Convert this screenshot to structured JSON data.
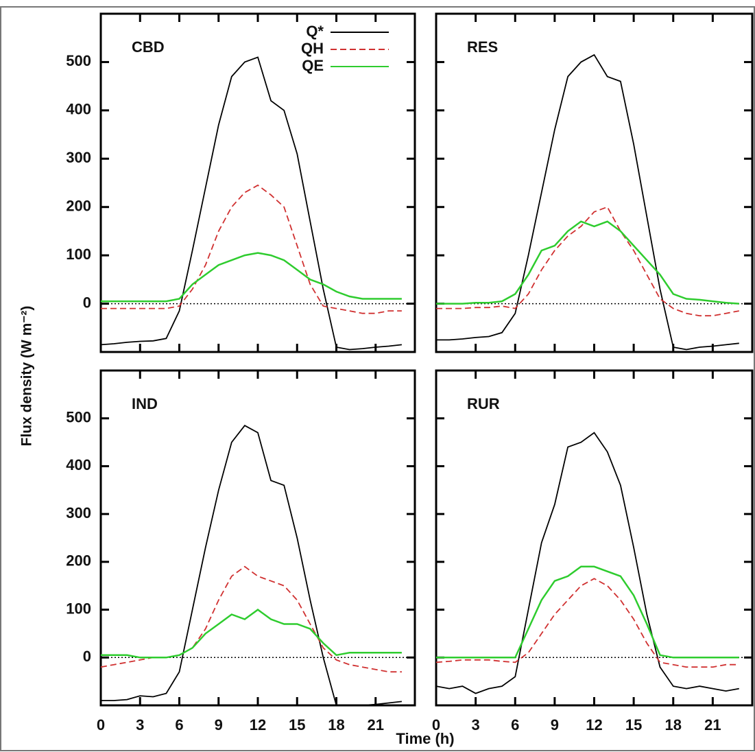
{
  "chart_data": [
    {
      "type": "line",
      "title": "CBD",
      "ylabel": "Flux density (W m⁻²)",
      "x": [
        0,
        1,
        2,
        3,
        4,
        5,
        6,
        7,
        8,
        9,
        10,
        11,
        12,
        13,
        14,
        15,
        16,
        17,
        18,
        19,
        20,
        21,
        22,
        23
      ],
      "xlim": [
        0,
        24
      ],
      "xticks": [
        0,
        3,
        6,
        9,
        12,
        15,
        18,
        21
      ],
      "ylim": [
        -100,
        600
      ],
      "yticks": [
        0,
        100,
        200,
        300,
        400,
        500
      ],
      "series": [
        {
          "name": "Q*",
          "color": "#000000",
          "values": [
            -85,
            -83,
            -80,
            -78,
            -77,
            -72,
            -15,
            110,
            240,
            370,
            470,
            500,
            510,
            420,
            400,
            310,
            170,
            30,
            -90,
            -95,
            -93,
            -90,
            -88,
            -85
          ]
        },
        {
          "name": "QH",
          "color": "#d03030",
          "values": [
            -10,
            -10,
            -10,
            -10,
            -10,
            -10,
            -5,
            30,
            80,
            150,
            200,
            230,
            245,
            225,
            200,
            120,
            40,
            -5,
            -10,
            -15,
            -20,
            -20,
            -15,
            -15
          ]
        },
        {
          "name": "QE",
          "color": "#2ecc2e",
          "values": [
            5,
            5,
            5,
            5,
            5,
            5,
            10,
            40,
            60,
            80,
            90,
            100,
            105,
            100,
            90,
            70,
            50,
            40,
            25,
            15,
            10,
            10,
            10,
            10
          ]
        }
      ]
    },
    {
      "type": "line",
      "title": "RES",
      "x": [
        0,
        1,
        2,
        3,
        4,
        5,
        6,
        7,
        8,
        9,
        10,
        11,
        12,
        13,
        14,
        15,
        16,
        17,
        18,
        19,
        20,
        21,
        22,
        23
      ],
      "xlim": [
        0,
        24
      ],
      "xticks": [
        0,
        3,
        6,
        9,
        12,
        15,
        18,
        21
      ],
      "ylim": [
        -100,
        600
      ],
      "yticks": [
        0,
        100,
        200,
        300,
        400,
        500
      ],
      "series": [
        {
          "color": "#000000",
          "values": [
            -75,
            -75,
            -73,
            -70,
            -68,
            -60,
            -20,
            100,
            230,
            360,
            470,
            500,
            515,
            470,
            460,
            330,
            180,
            30,
            -90,
            -95,
            -90,
            -88,
            -85,
            -82
          ]
        },
        {
          "color": "#d03030",
          "values": [
            -10,
            -10,
            -10,
            -8,
            -8,
            -5,
            -10,
            20,
            70,
            110,
            140,
            160,
            190,
            200,
            150,
            110,
            60,
            10,
            -10,
            -20,
            -25,
            -25,
            -20,
            -15
          ]
        },
        {
          "color": "#2ecc2e",
          "values": [
            0,
            0,
            0,
            2,
            2,
            5,
            20,
            60,
            110,
            120,
            150,
            170,
            160,
            170,
            150,
            120,
            90,
            60,
            20,
            10,
            8,
            5,
            2,
            0
          ]
        }
      ]
    },
    {
      "type": "line",
      "title": "IND",
      "x": [
        0,
        1,
        2,
        3,
        4,
        5,
        6,
        7,
        8,
        9,
        10,
        11,
        12,
        13,
        14,
        15,
        16,
        17,
        18,
        19,
        20,
        21,
        22,
        23
      ],
      "xlim": [
        0,
        24
      ],
      "xticks": [
        0,
        3,
        6,
        9,
        12,
        15,
        18,
        21
      ],
      "ylim": [
        -100,
        600
      ],
      "yticks": [
        0,
        100,
        200,
        300,
        400,
        500
      ],
      "series": [
        {
          "color": "#000000",
          "values": [
            -90,
            -90,
            -88,
            -80,
            -82,
            -75,
            -30,
            100,
            230,
            350,
            450,
            485,
            470,
            370,
            360,
            250,
            120,
            0,
            -100,
            -100,
            -100,
            -98,
            -95,
            -92
          ]
        },
        {
          "color": "#d03030",
          "values": [
            -20,
            -15,
            -10,
            -5,
            0,
            0,
            5,
            20,
            60,
            120,
            170,
            190,
            170,
            160,
            150,
            120,
            70,
            20,
            -5,
            -15,
            -20,
            -25,
            -30,
            -30
          ]
        },
        {
          "color": "#2ecc2e",
          "values": [
            5,
            5,
            5,
            0,
            0,
            0,
            5,
            20,
            50,
            70,
            90,
            80,
            100,
            80,
            70,
            70,
            60,
            30,
            5,
            10,
            10,
            10,
            10,
            10
          ]
        }
      ]
    },
    {
      "type": "line",
      "title": "RUR",
      "xlabel": "Time (h)",
      "x": [
        0,
        1,
        2,
        3,
        4,
        5,
        6,
        7,
        8,
        9,
        10,
        11,
        12,
        13,
        14,
        15,
        16,
        17,
        18,
        19,
        20,
        21,
        22,
        23
      ],
      "xlim": [
        0,
        24
      ],
      "xticks": [
        0,
        3,
        6,
        9,
        12,
        15,
        18,
        21
      ],
      "ylim": [
        -100,
        600
      ],
      "yticks": [
        0,
        100,
        200,
        300,
        400,
        500
      ],
      "series": [
        {
          "color": "#000000",
          "values": [
            -60,
            -65,
            -60,
            -75,
            -65,
            -60,
            -40,
            100,
            240,
            320,
            440,
            450,
            470,
            430,
            360,
            230,
            90,
            -20,
            -60,
            -65,
            -60,
            -65,
            -70,
            -65
          ]
        },
        {
          "color": "#d03030",
          "values": [
            -10,
            -8,
            -5,
            -5,
            -5,
            -8,
            -10,
            10,
            50,
            90,
            120,
            150,
            165,
            150,
            120,
            80,
            30,
            -10,
            -15,
            -20,
            -20,
            -20,
            -15,
            -15
          ]
        },
        {
          "color": "#2ecc2e",
          "values": [
            0,
            0,
            0,
            0,
            0,
            0,
            0,
            60,
            120,
            160,
            170,
            190,
            190,
            180,
            170,
            130,
            70,
            5,
            0,
            0,
            0,
            0,
            0,
            0
          ]
        }
      ]
    }
  ]
}
